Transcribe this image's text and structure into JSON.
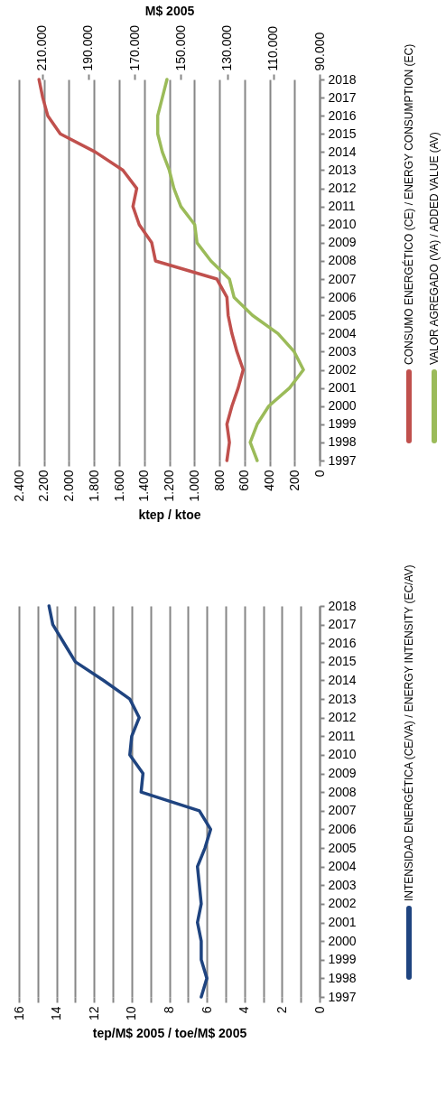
{
  "chart_data": [
    {
      "type": "line",
      "orientation": "horizontal",
      "categories": [
        "2018",
        "2017",
        "2016",
        "2015",
        "2014",
        "2013",
        "2012",
        "2011",
        "2010",
        "2009",
        "2008",
        "2007",
        "2006",
        "2005",
        "2004",
        "2003",
        "2002",
        "2001",
        "2000",
        "1999",
        "1998",
        "1997"
      ],
      "series": [
        {
          "name": "CONSUMO ENERGÉTICO (CE) / ENERGY CONSUMPTION (EC)",
          "color": "#c0504d",
          "values": [
            2240,
            2210,
            2170,
            2070,
            1790,
            1570,
            1460,
            1490,
            1440,
            1340,
            1310,
            820,
            740,
            730,
            700,
            660,
            610,
            650,
            700,
            740,
            720,
            740
          ]
        },
        {
          "name": "VALOR AGREGADO (VA) / ADDED VALUE (AV)",
          "color": "#9bbb59",
          "axis": "x2",
          "values": [
            156000,
            158000,
            160000,
            160000,
            158000,
            155000,
            153000,
            150000,
            144000,
            143000,
            137000,
            129000,
            127000,
            119000,
            108000,
            101000,
            97000,
            103000,
            112000,
            117000,
            120000,
            117000
          ]
        }
      ],
      "xlabel": "ktep / ktoe",
      "x2label": "M$ 2005",
      "xlim": [
        2400,
        0
      ],
      "xticks": [
        {
          "value": 2400,
          "label": "2.400"
        },
        {
          "value": 2200,
          "label": "2.200"
        },
        {
          "value": 2000,
          "label": "2.000"
        },
        {
          "value": 1800,
          "label": "1.800"
        },
        {
          "value": 1600,
          "label": "1.600"
        },
        {
          "value": 1400,
          "label": "1.400"
        },
        {
          "value": 1200,
          "label": "1.200"
        },
        {
          "value": 1000,
          "label": "1.000"
        },
        800,
        600,
        400,
        200,
        0
      ],
      "x2lim": [
        220000,
        90000
      ],
      "x2ticks": [
        {
          "value": 210000,
          "label": "210.000"
        },
        {
          "value": 190000,
          "label": "190.000"
        },
        {
          "value": 170000,
          "label": "170.000"
        },
        {
          "value": 150000,
          "label": "150.000"
        },
        {
          "value": 130000,
          "label": "130.000"
        },
        {
          "value": 110000,
          "label": "110.000"
        },
        {
          "value": 90000,
          "label": "90.000"
        }
      ],
      "grid": "x",
      "legend": "right"
    },
    {
      "type": "line",
      "orientation": "horizontal",
      "categories": [
        "2018",
        "2017",
        "2016",
        "2015",
        "2014",
        "2013",
        "2012",
        "2011",
        "2010",
        "2009",
        "2008",
        "2007",
        "2006",
        "2005",
        "2004",
        "2003",
        "2002",
        "2001",
        "2000",
        "1999",
        "1998",
        "1997"
      ],
      "series": [
        {
          "name": "INTENSIDAD ENERGÉTICA (CE/VA) / ENERGY INTENSITY (EC/AV)",
          "color": "#1f4480",
          "values": [
            14.4,
            14.2,
            13.6,
            13.0,
            11.5,
            10.1,
            9.6,
            10.0,
            10.1,
            9.4,
            9.5,
            6.4,
            5.8,
            6.1,
            6.5,
            6.4,
            6.3,
            6.5,
            6.3,
            6.3,
            6.0,
            6.3
          ]
        }
      ],
      "xlabel": "tep/M$ 2005 / toe/M$ 2005",
      "xlim": [
        16,
        0
      ],
      "xticks": [
        16,
        {
          "value": 15,
          "label": null
        },
        14,
        {
          "value": 13,
          "label": null
        },
        12,
        {
          "value": 11,
          "label": null
        },
        10,
        {
          "value": 9,
          "label": null
        },
        8,
        {
          "value": 7,
          "label": null
        },
        6,
        {
          "value": 5,
          "label": null
        },
        4,
        {
          "value": 3,
          "label": null
        },
        2,
        {
          "value": 1,
          "label": null
        },
        0
      ],
      "grid": "x",
      "legend": "right"
    }
  ]
}
